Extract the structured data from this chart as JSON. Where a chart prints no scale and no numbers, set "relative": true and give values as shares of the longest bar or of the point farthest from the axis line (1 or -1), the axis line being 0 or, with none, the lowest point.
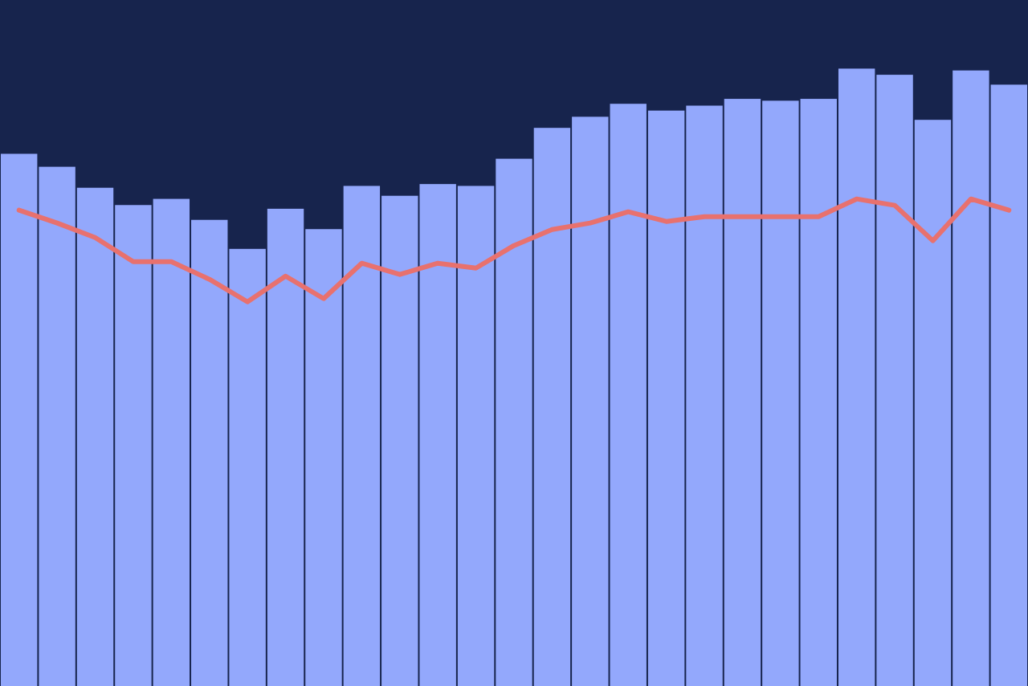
{
  "chart_data": [
    {
      "type": "bar",
      "relative": true,
      "categories": [
        null,
        null,
        null,
        null,
        null,
        null,
        null,
        null,
        null,
        null,
        null,
        null,
        null,
        null,
        null,
        null,
        null,
        null,
        null,
        null,
        null,
        null,
        null,
        null,
        null,
        null,
        null
      ],
      "series": [
        {
          "color": "#93a8fc",
          "values": [
            0.862,
            0.841,
            0.807,
            0.779,
            0.789,
            0.755,
            0.708,
            0.773,
            0.74,
            0.81,
            0.794,
            0.813,
            0.81,
            0.854,
            0.904,
            0.922,
            0.943,
            0.932,
            0.94,
            0.951,
            0.948,
            0.951,
            1,
            0.99,
            0.917,
            0.997,
            0.974
          ]
        }
      ]
    },
    {
      "type": "line",
      "relative": true,
      "categories": [
        null,
        null,
        null,
        null,
        null,
        null,
        null,
        null,
        null,
        null,
        null,
        null,
        null,
        null,
        null,
        null,
        null,
        null,
        null,
        null,
        null,
        null,
        null,
        null,
        null,
        null,
        null
      ],
      "series": [
        {
          "color": "#e8716e",
          "values": [
            0.891,
            0.766,
            0.625,
            0.391,
            0.391,
            0.219,
            0,
            0.25,
            0.031,
            0.375,
            0.266,
            0.375,
            0.328,
            0.547,
            0.703,
            0.766,
            0.875,
            0.781,
            0.828,
            0.828,
            0.828,
            0.828,
            1,
            0.938,
            0.594,
            1,
            0.891
          ]
        }
      ]
    }
  ]
}
